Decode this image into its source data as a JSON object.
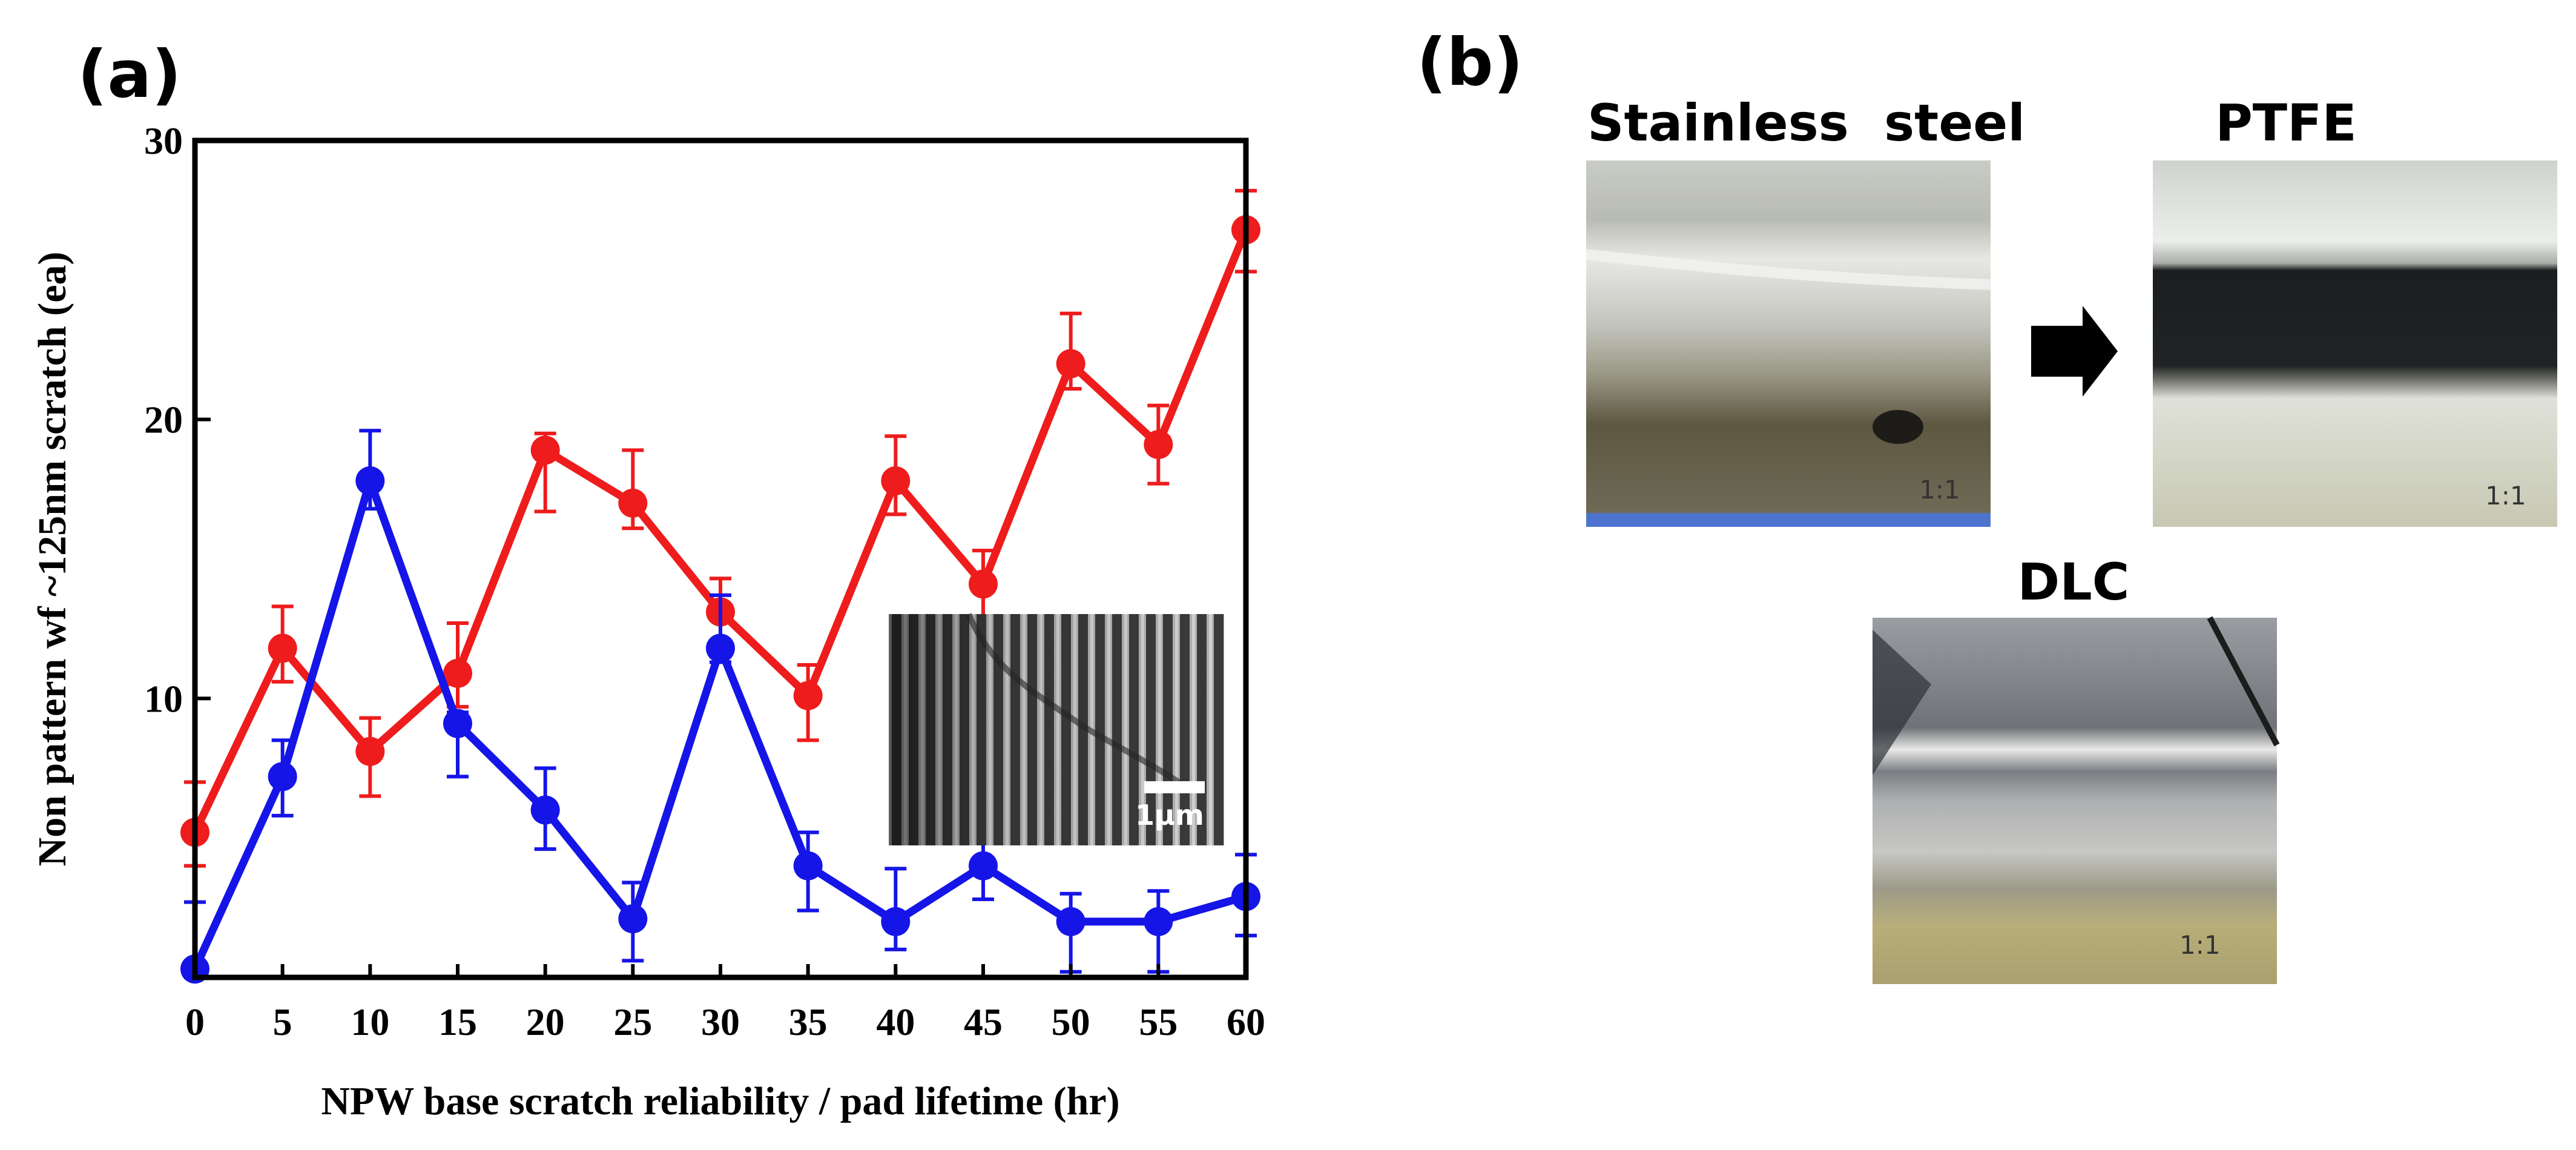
{
  "panels": {
    "a": "(a)",
    "b": "(b)"
  },
  "chart_data": {
    "type": "line",
    "title": "",
    "xlabel": "NPW base scratch reliability / pad lifetime (hr)",
    "ylabel": "Non pattern wf ~125nm scratch (ea)",
    "x": [
      0,
      5,
      10,
      15,
      20,
      25,
      30,
      35,
      40,
      45,
      50,
      55,
      60
    ],
    "xlim": [
      0,
      60
    ],
    "ylim": [
      0,
      30
    ],
    "yticks": [
      10,
      20,
      30
    ],
    "grid": false,
    "legend": "none",
    "series": [
      {
        "color": "#ee1c1c",
        "values": [
          5.2,
          11.8,
          8.1,
          10.9,
          18.9,
          17.0,
          13.1,
          10.1,
          17.8,
          14.1,
          22.0,
          19.1,
          26.8
        ],
        "err_lo": [
          1.2,
          1.2,
          1.6,
          1.2,
          2.2,
          0.9,
          1.6,
          1.6,
          1.2,
          1.6,
          0.9,
          1.4,
          1.5
        ],
        "err_hi": [
          1.8,
          1.5,
          1.2,
          1.8,
          0.6,
          1.9,
          1.2,
          1.1,
          1.6,
          1.2,
          1.8,
          1.4,
          1.4
        ]
      },
      {
        "color": "#1515e8",
        "values": [
          0.3,
          7.2,
          17.8,
          9.1,
          6.0,
          2.1,
          11.8,
          4.0,
          2.0,
          4.0,
          2.0,
          2.0,
          2.9
        ],
        "err_lo": [
          0.3,
          1.4,
          1.0,
          1.9,
          1.4,
          1.5,
          0.5,
          1.6,
          1.0,
          1.2,
          1.8,
          1.8,
          1.4
        ],
        "err_hi": [
          2.4,
          1.3,
          1.8,
          0.4,
          1.5,
          1.3,
          1.9,
          1.2,
          1.9,
          1.7,
          1.0,
          1.1,
          1.5
        ]
      }
    ]
  },
  "inset": {
    "scale_label": "1μm"
  },
  "photos": {
    "stainless": {
      "title": "Stainless  steel",
      "zoom": "1:1"
    },
    "ptfe": {
      "title": "PTFE",
      "zoom": "1:1"
    },
    "dlc": {
      "title": "DLC",
      "zoom": "1:1"
    }
  }
}
